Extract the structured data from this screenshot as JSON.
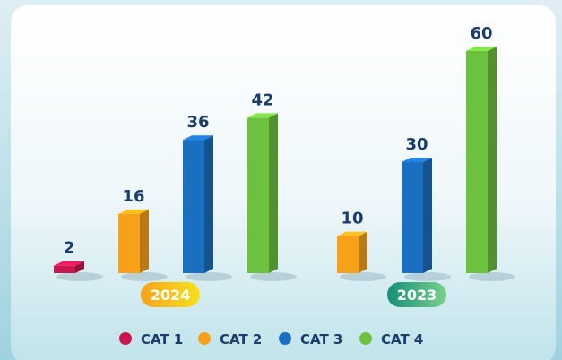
{
  "chart_data": {
    "type": "bar",
    "categories": [
      "2024",
      "2023"
    ],
    "series": [
      {
        "name": "CAT 1",
        "color": "#c8164f",
        "values": [
          2,
          null
        ]
      },
      {
        "name": "CAT 2",
        "color": "#f7a11a",
        "values": [
          16,
          10
        ]
      },
      {
        "name": "CAT 3",
        "color": "#1a6fc0",
        "values": [
          36,
          30
        ]
      },
      {
        "name": "CAT 4",
        "color": "#6cc13f",
        "values": [
          42,
          60
        ]
      }
    ]
  }
}
